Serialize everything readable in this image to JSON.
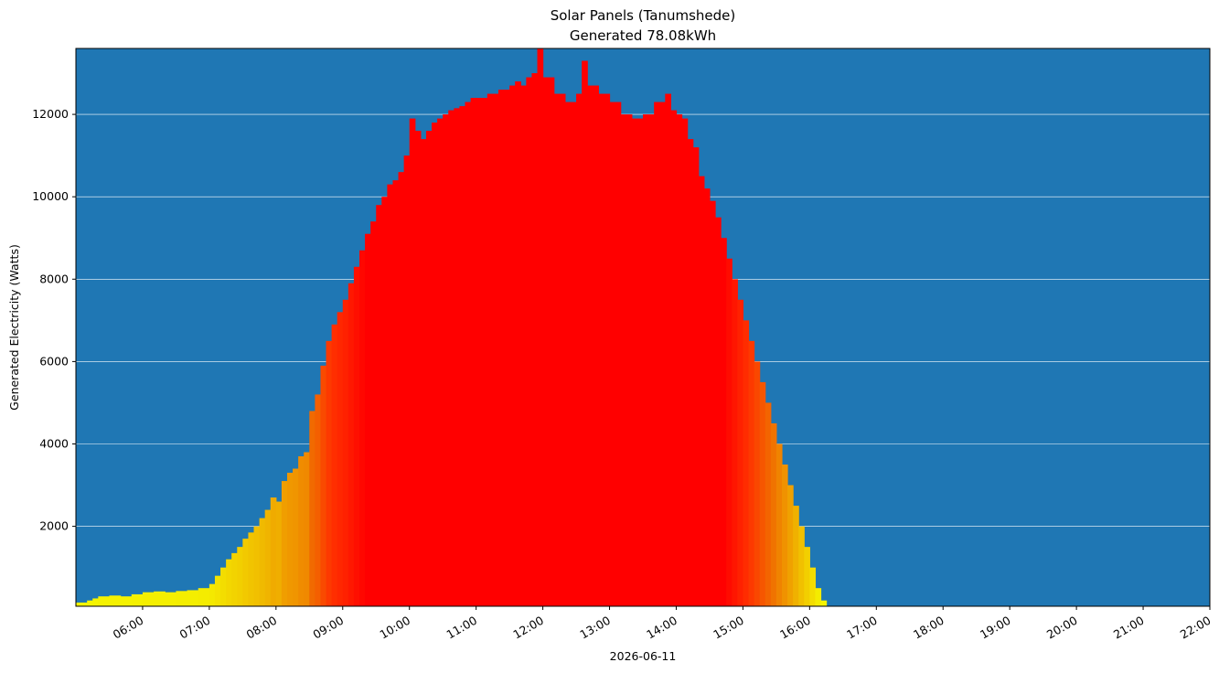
{
  "chart_data": {
    "type": "bar",
    "title": "Solar Panels (Tanumshede)",
    "subtitle": "Generated 78.08kWh",
    "xlabel": "2026-06-11",
    "ylabel": "Generated Electricity (Watts)",
    "background_color": "#1f77b4",
    "color_scale": [
      "#f5f500",
      "#f0b400",
      "#f07000",
      "#ff3000",
      "#ff0000"
    ],
    "grid": {
      "y": true,
      "x": false,
      "color": "#ffffff"
    },
    "xlim": [
      "05:00",
      "22:00"
    ],
    "ylim": [
      60,
      13600
    ],
    "x_ticks": [
      "06:00",
      "07:00",
      "08:00",
      "09:00",
      "10:00",
      "11:00",
      "12:00",
      "13:00",
      "14:00",
      "15:00",
      "16:00",
      "17:00",
      "18:00",
      "19:00",
      "20:00",
      "21:00",
      "22:00"
    ],
    "y_ticks": [
      2000,
      4000,
      6000,
      8000,
      10000,
      12000
    ],
    "series": [
      {
        "x": [
          "05:00",
          "05:10",
          "05:15",
          "05:20",
          "05:30",
          "05:40",
          "05:50",
          "06:00",
          "06:10",
          "06:20",
          "06:30",
          "06:40",
          "06:50",
          "07:00",
          "07:05",
          "07:10",
          "07:15",
          "07:20",
          "07:25",
          "07:30",
          "07:35",
          "07:40",
          "07:45",
          "07:50",
          "07:55",
          "08:00",
          "08:05",
          "08:10",
          "08:15",
          "08:20",
          "08:25",
          "08:30",
          "08:35",
          "08:40",
          "08:45",
          "08:50",
          "08:55",
          "09:00",
          "09:05",
          "09:10",
          "09:15",
          "09:20",
          "09:25",
          "09:30",
          "09:35",
          "09:40",
          "09:45",
          "09:50",
          "09:55",
          "10:00",
          "10:05",
          "10:10",
          "10:15",
          "10:20",
          "10:25",
          "10:30",
          "10:35",
          "10:40",
          "10:45",
          "10:50",
          "10:55",
          "11:00",
          "11:10",
          "11:20",
          "11:30",
          "11:35",
          "11:40",
          "11:45",
          "11:50",
          "11:55",
          "12:00",
          "12:10",
          "12:20",
          "12:30",
          "12:35",
          "12:40",
          "12:50",
          "13:00",
          "13:10",
          "13:20",
          "13:30",
          "13:40",
          "13:50",
          "13:55",
          "14:00",
          "14:05",
          "14:10",
          "14:15",
          "14:20",
          "14:25",
          "14:30",
          "14:35",
          "14:40",
          "14:45",
          "14:50",
          "14:55",
          "15:00",
          "15:05",
          "15:10",
          "15:15",
          "15:20",
          "15:25",
          "15:30",
          "15:35",
          "15:40",
          "15:45",
          "15:50",
          "15:55",
          "16:00",
          "16:05",
          "16:10"
        ],
        "values": [
          150,
          200,
          250,
          300,
          320,
          300,
          350,
          400,
          420,
          400,
          430,
          450,
          500,
          600,
          800,
          1000,
          1200,
          1350,
          1500,
          1700,
          1850,
          2000,
          2200,
          2400,
          2700,
          2600,
          3100,
          3300,
          3400,
          3700,
          3800,
          4800,
          5200,
          5900,
          6500,
          6900,
          7200,
          7500,
          7900,
          8300,
          8700,
          9100,
          9400,
          9800,
          10000,
          10300,
          10400,
          10600,
          11000,
          11900,
          11600,
          11400,
          11600,
          11800,
          11900,
          12000,
          12100,
          12150,
          12200,
          12300,
          12400,
          12400,
          12500,
          12600,
          12700,
          12800,
          12700,
          12900,
          13000,
          13600,
          12900,
          12500,
          12300,
          12500,
          13300,
          12700,
          12500,
          12300,
          12000,
          11900,
          12000,
          12300,
          12500,
          12100,
          12000,
          11900,
          11400,
          11200,
          10500,
          10200,
          9900,
          9500,
          9000,
          8500,
          8000,
          7500,
          7000,
          6500,
          6000,
          5500,
          5000,
          4500,
          4000,
          3500,
          3000,
          2500,
          2000,
          1500,
          1000,
          500,
          200
        ]
      }
    ]
  }
}
